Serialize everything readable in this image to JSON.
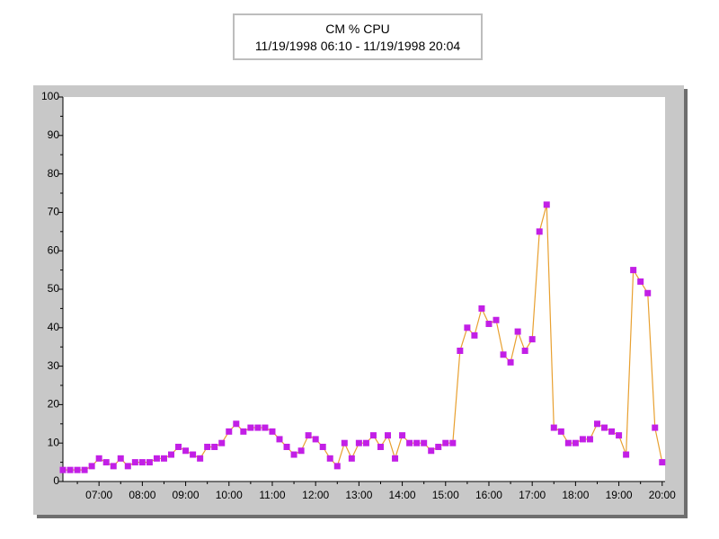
{
  "chart_data": {
    "type": "line",
    "title": "CM % CPU",
    "subtitle": "11/19/1998 06:10 - 11/19/1998 20:04",
    "x": [
      "06:10",
      "06:20",
      "06:30",
      "06:40",
      "06:50",
      "07:00",
      "07:10",
      "07:20",
      "07:30",
      "07:40",
      "07:50",
      "08:00",
      "08:10",
      "08:20",
      "08:30",
      "08:40",
      "08:50",
      "09:00",
      "09:10",
      "09:20",
      "09:30",
      "09:40",
      "09:50",
      "10:00",
      "10:10",
      "10:20",
      "10:30",
      "10:40",
      "10:50",
      "11:00",
      "11:10",
      "11:20",
      "11:30",
      "11:40",
      "11:50",
      "12:00",
      "12:10",
      "12:20",
      "12:30",
      "12:40",
      "12:50",
      "13:00",
      "13:10",
      "13:20",
      "13:30",
      "13:40",
      "13:50",
      "14:00",
      "14:10",
      "14:20",
      "14:30",
      "14:40",
      "14:50",
      "15:00",
      "15:10",
      "15:20",
      "15:30",
      "15:40",
      "15:50",
      "16:00",
      "16:10",
      "16:20",
      "16:30",
      "16:40",
      "16:50",
      "17:00",
      "17:10",
      "17:20",
      "17:30",
      "17:40",
      "17:50",
      "18:00",
      "18:10",
      "18:20",
      "18:30",
      "18:40",
      "18:50",
      "19:00",
      "19:10",
      "19:20",
      "19:30",
      "19:40",
      "19:50",
      "20:00"
    ],
    "series": [
      {
        "name": "CM % CPU",
        "color": "#e8a030",
        "marker_color": "#c21fe6",
        "values": [
          3,
          3,
          3,
          3,
          4,
          6,
          5,
          4,
          6,
          4,
          5,
          5,
          5,
          6,
          6,
          7,
          9,
          8,
          7,
          6,
          9,
          9,
          10,
          13,
          15,
          13,
          14,
          14,
          14,
          13,
          11,
          9,
          7,
          8,
          12,
          11,
          9,
          6,
          4,
          10,
          6,
          10,
          10,
          12,
          9,
          12,
          6,
          12,
          10,
          10,
          10,
          8,
          9,
          10,
          10,
          34,
          40,
          38,
          45,
          41,
          42,
          33,
          31,
          39,
          34,
          37,
          65,
          72,
          14,
          13,
          10,
          10,
          11,
          11,
          15,
          14,
          13,
          12,
          7,
          55,
          52,
          49,
          14,
          5
        ]
      }
    ],
    "xlim": [
      "06:10",
      "20:04"
    ],
    "xticks": [
      "07:00",
      "08:00",
      "09:00",
      "10:00",
      "11:00",
      "12:00",
      "13:00",
      "14:00",
      "15:00",
      "16:00",
      "17:00",
      "18:00",
      "19:00",
      "20:00"
    ],
    "ylim": [
      0,
      100
    ],
    "yticks": [
      0,
      10,
      20,
      30,
      40,
      50,
      60,
      70,
      80,
      90,
      100
    ]
  }
}
